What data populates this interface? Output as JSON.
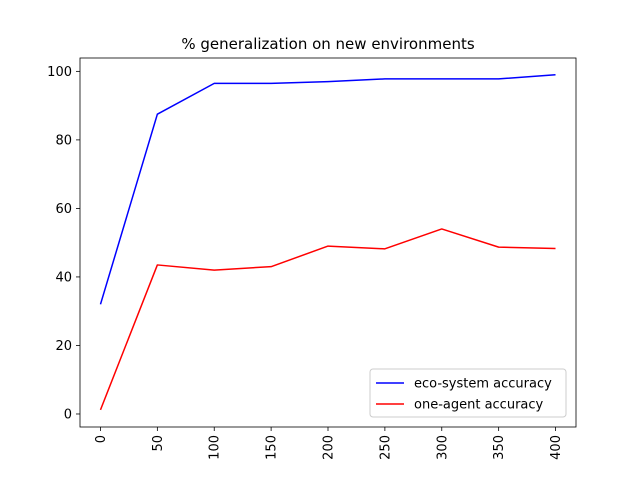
{
  "chart_data": {
    "type": "line",
    "title": "% generalization on new environments",
    "xlabel": "",
    "ylabel": "",
    "x": [
      0,
      50,
      100,
      150,
      200,
      250,
      300,
      350,
      400
    ],
    "xticks": [
      "0",
      "50",
      "100",
      "150",
      "200",
      "250",
      "300",
      "350",
      "400"
    ],
    "yticks": [
      0,
      20,
      40,
      60,
      80,
      100
    ],
    "xlim": [
      -18,
      418
    ],
    "ylim": [
      -3.8,
      103.9
    ],
    "grid": false,
    "legend_position": "lower-right",
    "series": [
      {
        "name": "eco-system accuracy",
        "color": "#0000ff",
        "values": [
          32.0,
          87.5,
          96.5,
          96.5,
          97.0,
          97.8,
          97.8,
          97.8,
          99.0
        ]
      },
      {
        "name": "one-agent accuracy",
        "color": "#ff0000",
        "values": [
          1.2,
          43.5,
          42.0,
          43.0,
          49.0,
          48.2,
          54.0,
          48.7,
          48.3
        ]
      }
    ]
  }
}
